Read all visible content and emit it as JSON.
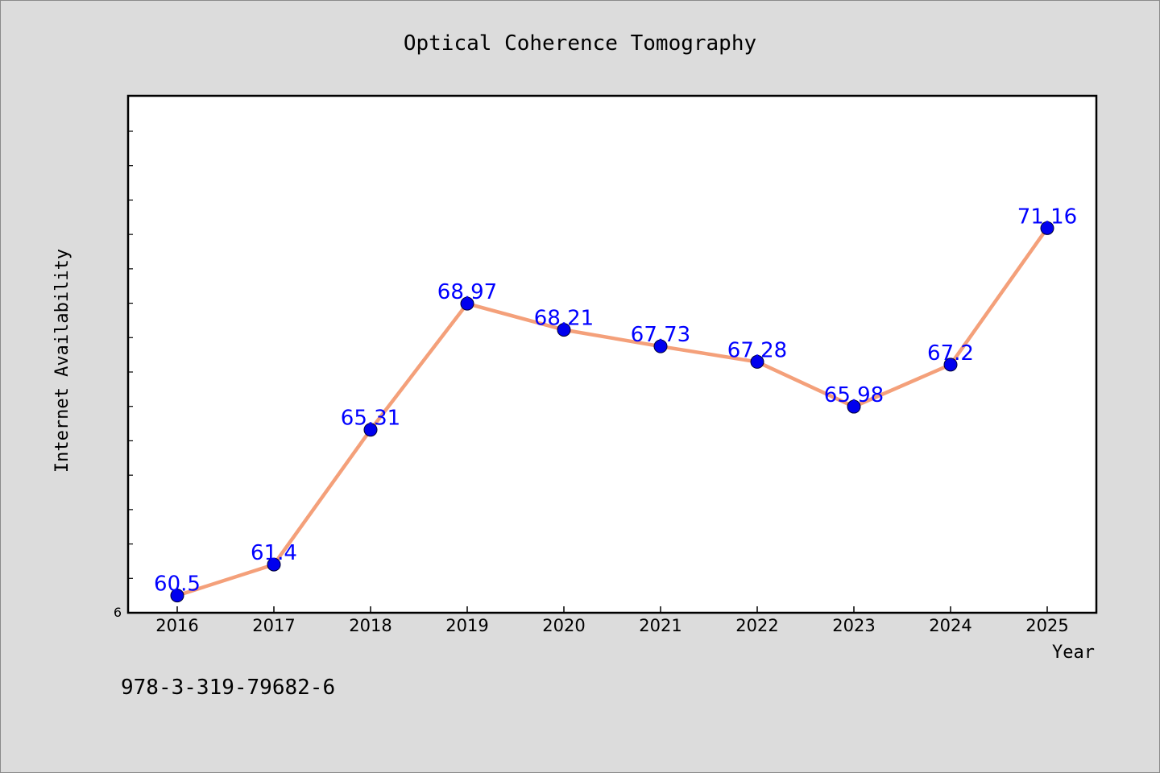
{
  "chart_data": {
    "type": "line",
    "title": "Optical Coherence Tomography",
    "xlabel": "Year",
    "ylabel": "Internet Availability",
    "categories": [
      "2016",
      "2017",
      "2018",
      "2019",
      "2020",
      "2021",
      "2022",
      "2023",
      "2024",
      "2025"
    ],
    "series": [
      {
        "values": [
          60.5,
          61.4,
          65.31,
          68.97,
          68.21,
          67.73,
          67.28,
          65.98,
          67.2,
          71.16
        ],
        "labels": [
          "60.5",
          "61.4",
          "65.31",
          "68.97",
          "68.21",
          "67.73",
          "67.28",
          "65.98",
          "67.2",
          "71.16"
        ],
        "line_color": "#f4a07a",
        "marker_color": "#0000ee"
      }
    ],
    "ylim": [
      60,
      75
    ],
    "y_tick_labels": [
      "6"
    ],
    "grid": false,
    "legend": "none"
  },
  "footnote": "978-3-319-79682-6",
  "colors": {
    "background": "#dcdcdc",
    "plot_area": "#ffffff",
    "data_label": "#0000ff"
  }
}
